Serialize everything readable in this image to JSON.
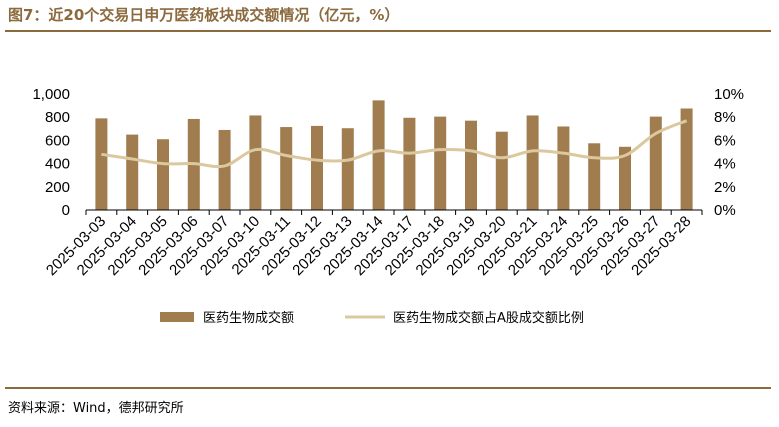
{
  "title": "图7：近20个交易日申万医药板块成交额情况（亿元，%）",
  "source": "资料来源：Wind，德邦研究所",
  "colors": {
    "bar": "#a07c4f",
    "line": "#dcc89f",
    "header": "#8b6a3e"
  },
  "chart_data": {
    "type": "bar",
    "categories": [
      "2025-03-03",
      "2025-03-04",
      "2025-03-05",
      "2025-03-06",
      "2025-03-07",
      "2025-03-10",
      "2025-03-11",
      "2025-03-12",
      "2025-03-13",
      "2025-03-14",
      "2025-03-17",
      "2025-03-18",
      "2025-03-19",
      "2025-03-20",
      "2025-03-21",
      "2025-03-24",
      "2025-03-25",
      "2025-03-26",
      "2025-03-27",
      "2025-03-28"
    ],
    "series": [
      {
        "name": "医药生物成交额",
        "type": "bar",
        "axis": "left",
        "values": [
          790,
          650,
          610,
          785,
          690,
          815,
          715,
          725,
          705,
          945,
          795,
          805,
          770,
          675,
          815,
          720,
          575,
          545,
          805,
          875
        ]
      },
      {
        "name": "医药生物成交额占A股成交额比例",
        "type": "line",
        "axis": "right",
        "values": [
          4.8,
          4.4,
          4.0,
          4.0,
          3.8,
          5.2,
          4.7,
          4.3,
          4.3,
          5.1,
          4.9,
          5.2,
          5.1,
          4.5,
          5.1,
          4.9,
          4.5,
          4.7,
          6.6,
          7.7
        ]
      }
    ],
    "yleft": {
      "lim": [
        0,
        1000
      ],
      "ticks": [
        "0",
        "200",
        "400",
        "600",
        "800",
        "1,000"
      ]
    },
    "yright": {
      "lim": [
        0,
        10
      ],
      "ticks": [
        "0%",
        "2%",
        "4%",
        "6%",
        "8%",
        "10%"
      ]
    },
    "legend": "bottom",
    "grid": false
  }
}
